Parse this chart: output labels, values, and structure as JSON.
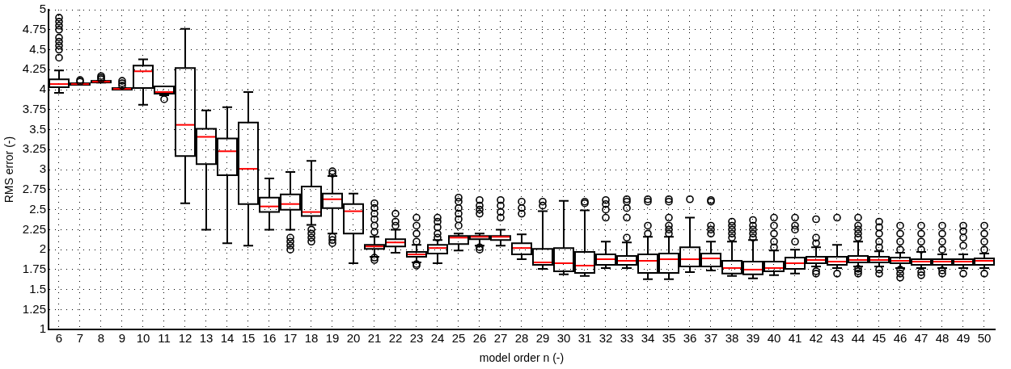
{
  "chart_data": {
    "type": "box",
    "xlabel": "model order n (-)",
    "ylabel": "RMS error (-)",
    "categories": [
      "6",
      "7",
      "8",
      "9",
      "10",
      "11",
      "12",
      "13",
      "14",
      "15",
      "16",
      "17",
      "18",
      "19",
      "20",
      "21",
      "22",
      "23",
      "24",
      "25",
      "26",
      "27",
      "28",
      "29",
      "30",
      "31",
      "32",
      "33",
      "34",
      "35",
      "36",
      "37",
      "38",
      "39",
      "40",
      "41",
      "42",
      "43",
      "44",
      "45",
      "46",
      "47",
      "48",
      "49",
      "50"
    ],
    "ylim": [
      1,
      5
    ],
    "yticks": [
      1,
      1.25,
      1.5,
      1.75,
      2,
      2.25,
      2.5,
      2.75,
      3,
      3.25,
      3.5,
      3.75,
      4,
      4.25,
      4.5,
      4.75,
      5
    ],
    "grid": true,
    "marker": "circle",
    "series": [
      {
        "color": "#000000",
        "boxes": [
          {
            "low": 3.96,
            "q1": 4.03,
            "median": 4.07,
            "q3": 4.13,
            "high": 4.24,
            "outliers": [
              4.4,
              4.5,
              4.55,
              4.6,
              4.65,
              4.75,
              4.8,
              4.85,
              4.9
            ]
          },
          {
            "low": 4.06,
            "q1": 4.06,
            "median": 4.07,
            "q3": 4.08,
            "high": 4.08,
            "outliers": [
              4.1,
              4.12
            ]
          },
          {
            "low": 4.09,
            "q1": 4.09,
            "median": 4.1,
            "q3": 4.11,
            "high": 4.11,
            "outliers": [
              4.13,
              4.15,
              4.17
            ]
          },
          {
            "low": 4,
            "q1": 4,
            "median": 4.01,
            "q3": 4.02,
            "high": 4.02,
            "outliers": [
              4.05,
              4.08,
              4.11
            ]
          },
          {
            "low": 3.81,
            "q1": 4.02,
            "median": 4.23,
            "q3": 4.3,
            "high": 4.38
          },
          {
            "low": 3.93,
            "q1": 3.95,
            "median": 3.97,
            "q3": 4.04,
            "high": 4.04,
            "outliers": [
              3.88
            ]
          },
          {
            "low": 2.58,
            "q1": 3.17,
            "median": 3.56,
            "q3": 4.27,
            "high": 4.76
          },
          {
            "low": 2.25,
            "q1": 3.07,
            "median": 3.41,
            "q3": 3.51,
            "high": 3.74
          },
          {
            "low": 2.08,
            "q1": 2.93,
            "median": 3.23,
            "q3": 3.39,
            "high": 3.78
          },
          {
            "low": 2.05,
            "q1": 2.57,
            "median": 3.01,
            "q3": 3.59,
            "high": 3.97
          },
          {
            "low": 2.25,
            "q1": 2.47,
            "median": 2.54,
            "q3": 2.65,
            "high": 2.89
          },
          {
            "low": 2.25,
            "q1": 2.5,
            "median": 2.57,
            "q3": 2.69,
            "high": 2.97,
            "outliers": [
              2,
              2.05,
              2.1,
              2.15
            ]
          },
          {
            "low": 2.31,
            "q1": 2.42,
            "median": 2.47,
            "q3": 2.79,
            "high": 3.11,
            "outliers": [
              2.1,
              2.15,
              2.2,
              2.25
            ]
          },
          {
            "low": 2.2,
            "q1": 2.52,
            "median": 2.63,
            "q3": 2.7,
            "high": 2.92,
            "outliers": [
              2.08,
              2.12,
              2.16,
              2.95,
              2.98
            ]
          },
          {
            "low": 1.83,
            "q1": 2.2,
            "median": 2.48,
            "q3": 2.57,
            "high": 2.7
          },
          {
            "low": 1.91,
            "q1": 2.01,
            "median": 2.04,
            "q3": 2.06,
            "high": 2.16,
            "outliers": [
              1.87,
              1.9,
              2.22,
              2.3,
              2.38,
              2.45,
              2.52,
              2.58
            ]
          },
          {
            "low": 1.96,
            "q1": 2.04,
            "median": 2.09,
            "q3": 2.13,
            "high": 2.25,
            "outliers": [
              2.3,
              2.35,
              2.45
            ]
          },
          {
            "low": 1.84,
            "q1": 1.91,
            "median": 1.94,
            "q3": 1.97,
            "high": 2.06,
            "outliers": [
              1.8,
              1.82,
              2.1,
              2.2,
              2.3,
              2.4
            ]
          },
          {
            "low": 1.83,
            "q1": 1.95,
            "median": 2.02,
            "q3": 2.06,
            "high": 2.12,
            "outliers": [
              2.15,
              2.2,
              2.28,
              2.35,
              2.4
            ]
          },
          {
            "low": 1.99,
            "q1": 2.07,
            "median": 2.15,
            "q3": 2.17,
            "high": 2.2,
            "outliers": [
              2.3,
              2.38,
              2.45,
              2.52,
              2.6,
              2.65
            ]
          },
          {
            "low": 2.05,
            "q1": 2.13,
            "median": 2.16,
            "q3": 2.17,
            "high": 2.2,
            "outliers": [
              2,
              2.03,
              2.45,
              2.5,
              2.55,
              2.62
            ]
          },
          {
            "low": 2.05,
            "q1": 2.12,
            "median": 2.16,
            "q3": 2.17,
            "high": 2.25,
            "outliers": [
              2.4,
              2.47,
              2.55,
              2.62
            ]
          },
          {
            "low": 1.88,
            "q1": 1.94,
            "median": 2.02,
            "q3": 2.08,
            "high": 2.19,
            "outliers": [
              2.45,
              2.52,
              2.6
            ]
          },
          {
            "low": 1.76,
            "q1": 1.81,
            "median": 1.84,
            "q3": 2.01,
            "high": 2.48,
            "outliers": [
              2.55,
              2.6
            ]
          },
          {
            "low": 1.69,
            "q1": 1.73,
            "median": 1.83,
            "q3": 2.02,
            "high": 2.61
          },
          {
            "low": 1.67,
            "q1": 1.71,
            "median": 1.8,
            "q3": 1.97,
            "high": 2.49,
            "outliers": [
              2.58,
              2.6
            ]
          },
          {
            "low": 1.77,
            "q1": 1.81,
            "median": 1.88,
            "q3": 1.94,
            "high": 2.1,
            "outliers": [
              2.4,
              2.5,
              2.57,
              2.62
            ]
          },
          {
            "low": 1.77,
            "q1": 1.81,
            "median": 1.86,
            "q3": 1.92,
            "high": 2.09,
            "outliers": [
              2.15,
              2.4,
              2.52,
              2.6,
              2.63
            ]
          },
          {
            "low": 1.63,
            "q1": 1.71,
            "median": 1.86,
            "q3": 1.94,
            "high": 2.16,
            "outliers": [
              2.2,
              2.3,
              2.6,
              2.63
            ]
          },
          {
            "low": 1.63,
            "q1": 1.71,
            "median": 1.88,
            "q3": 1.95,
            "high": 2.16,
            "outliers": [
              2.2,
              2.25,
              2.3,
              2.4,
              2.6,
              2.63
            ]
          },
          {
            "low": 1.72,
            "q1": 1.79,
            "median": 1.88,
            "q3": 2.03,
            "high": 2.4,
            "outliers": [
              2.63
            ]
          },
          {
            "low": 1.74,
            "q1": 1.79,
            "median": 1.89,
            "q3": 1.95,
            "high": 2.1,
            "outliers": [
              2.2,
              2.25,
              2.3,
              2.6,
              2.62
            ]
          },
          {
            "low": 1.67,
            "q1": 1.7,
            "median": 1.77,
            "q3": 1.86,
            "high": 2.1,
            "outliers": [
              2.15,
              2.2,
              2.25,
              2.3,
              2.35
            ]
          },
          {
            "low": 1.64,
            "q1": 1.69,
            "median": 1.75,
            "q3": 1.85,
            "high": 2.12,
            "outliers": [
              2.15,
              2.2,
              2.25,
              2.3,
              2.37
            ]
          },
          {
            "low": 1.68,
            "q1": 1.73,
            "median": 1.77,
            "q3": 1.85,
            "high": 1.99,
            "outliers": [
              2.03,
              2.1,
              2.2,
              2.3,
              2.4
            ]
          },
          {
            "low": 1.7,
            "q1": 1.76,
            "median": 1.83,
            "q3": 1.9,
            "high": 2,
            "outliers": [
              2.1,
              2.25,
              2.3,
              2.4
            ]
          },
          {
            "low": 1.79,
            "q1": 1.83,
            "median": 1.87,
            "q3": 1.91,
            "high": 2.03,
            "outliers": [
              1.7,
              1.73,
              2.08,
              2.15,
              2.38
            ]
          },
          {
            "low": 1.77,
            "q1": 1.81,
            "median": 1.85,
            "q3": 1.91,
            "high": 2.06,
            "outliers": [
              1.7,
              2.4
            ]
          },
          {
            "low": 1.79,
            "q1": 1.84,
            "median": 1.87,
            "q3": 1.92,
            "high": 2.1,
            "outliers": [
              1.7,
              1.73,
              1.76,
              2.15,
              2.2,
              2.25,
              2.3,
              2.4
            ]
          },
          {
            "low": 1.79,
            "q1": 1.84,
            "median": 1.87,
            "q3": 1.91,
            "high": 1.98,
            "outliers": [
              1.7,
              1.75,
              2.03,
              2.1,
              2.2,
              2.28,
              2.35
            ]
          },
          {
            "low": 1.77,
            "q1": 1.83,
            "median": 1.86,
            "q3": 1.9,
            "high": 1.96,
            "outliers": [
              1.65,
              1.7,
              1.75,
              2,
              2.1,
              2.2,
              2.3
            ]
          },
          {
            "low": 1.77,
            "q1": 1.81,
            "median": 1.85,
            "q3": 1.88,
            "high": 1.97,
            "outliers": [
              1.68,
              1.72,
              2,
              2.1,
              2.2,
              2.3
            ]
          },
          {
            "low": 1.77,
            "q1": 1.81,
            "median": 1.85,
            "q3": 1.88,
            "high": 1.94,
            "outliers": [
              1.7,
              1.74,
              2,
              2.1,
              2.2,
              2.3
            ]
          },
          {
            "low": 1.77,
            "q1": 1.81,
            "median": 1.85,
            "q3": 1.88,
            "high": 1.94,
            "outliers": [
              1.7,
              2.05,
              2.15,
              2.23,
              2.3
            ]
          },
          {
            "low": 1.77,
            "q1": 1.81,
            "median": 1.86,
            "q3": 1.89,
            "high": 1.95,
            "outliers": [
              1.7,
              2,
              2.1,
              2.2,
              2.3
            ]
          }
        ]
      }
    ]
  }
}
